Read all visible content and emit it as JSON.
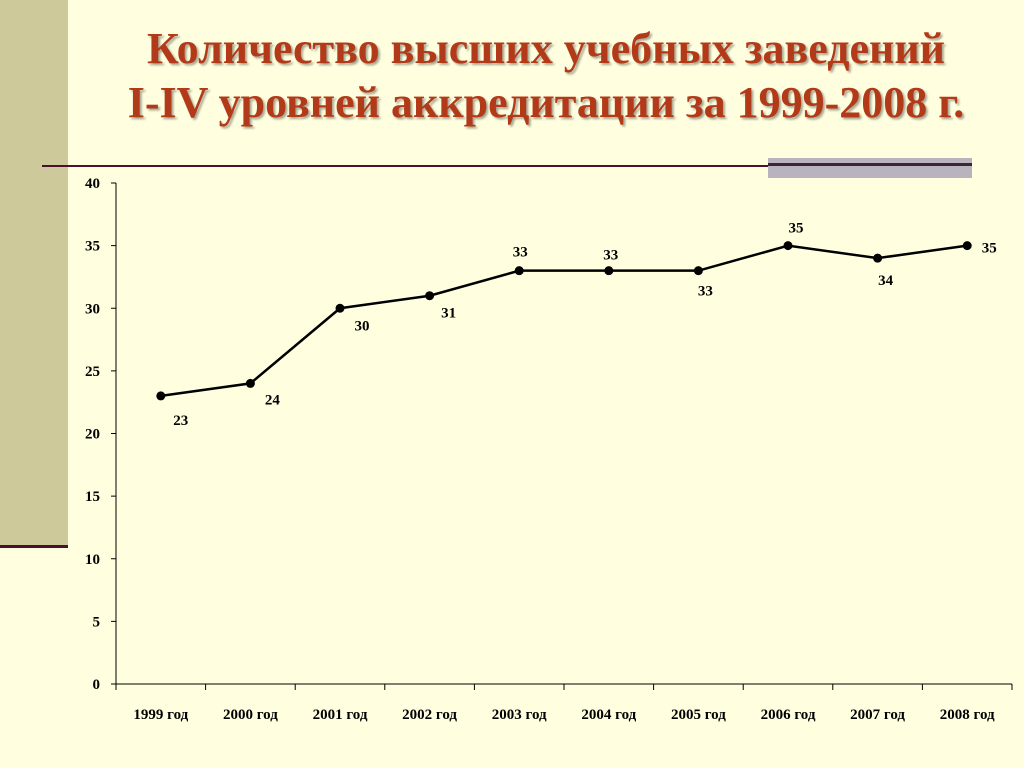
{
  "title": {
    "line1": "Количество высших учебных заведений",
    "line2": "I-IV уровней аккредитации за 1999-2008 г."
  },
  "colors": {
    "title": "#b33a18",
    "background": "#ffffe0",
    "sidebar": "#cdc99b",
    "rule": "#4a1030",
    "line": "#000000"
  },
  "chart_data": {
    "type": "line",
    "title": "Количество высших учебных заведений I-IV уровней аккредитации за 1999-2008 г.",
    "xlabel": "",
    "ylabel": "",
    "categories": [
      "1999 год",
      "2000 год",
      "2001 год",
      "2002 год",
      "2003 год",
      "2004 год",
      "2005 год",
      "2006 год",
      "2007 год",
      "2008 год"
    ],
    "series": [
      {
        "values": [
          23,
          24,
          30,
          31,
          33,
          33,
          33,
          35,
          34,
          35
        ]
      }
    ],
    "data_labels": [
      "23",
      "24",
      "30",
      "31",
      "33",
      "33",
      "33",
      "35",
      "34",
      "35"
    ],
    "y_ticks": [
      "0",
      "5",
      "10",
      "15",
      "20",
      "25",
      "30",
      "35",
      "40"
    ],
    "ylim": [
      0,
      40
    ],
    "grid": false,
    "legend": "none"
  }
}
